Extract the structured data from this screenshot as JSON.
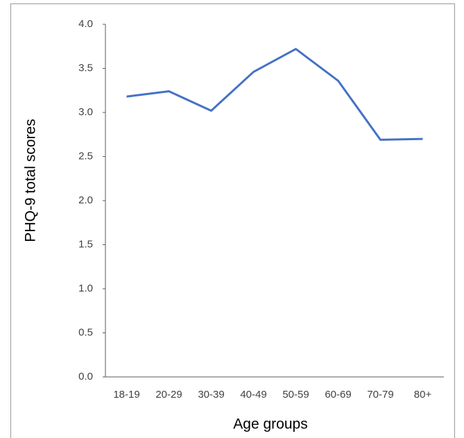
{
  "chart_data": {
    "type": "line",
    "x_label": "Age groups",
    "y_label": "PHQ-9 total scores",
    "categories": [
      "18-19",
      "20-29",
      "30-39",
      "40-49",
      "50-59",
      "60-69",
      "70-79",
      "80+"
    ],
    "values": [
      3.18,
      3.24,
      3.02,
      3.46,
      3.72,
      3.36,
      2.69,
      2.7
    ],
    "color": "#4472c4",
    "ylim": [
      0,
      4
    ],
    "yticks": [
      {
        "value": 0,
        "label": "0.0"
      },
      0.5,
      {
        "value": 1,
        "label": "1.0"
      },
      1.5,
      {
        "value": 2,
        "label": "2.0"
      },
      2.5,
      {
        "value": 3,
        "label": "3.0"
      },
      3.5,
      {
        "value": 4,
        "label": "4.0"
      }
    ],
    "grid": false
  }
}
